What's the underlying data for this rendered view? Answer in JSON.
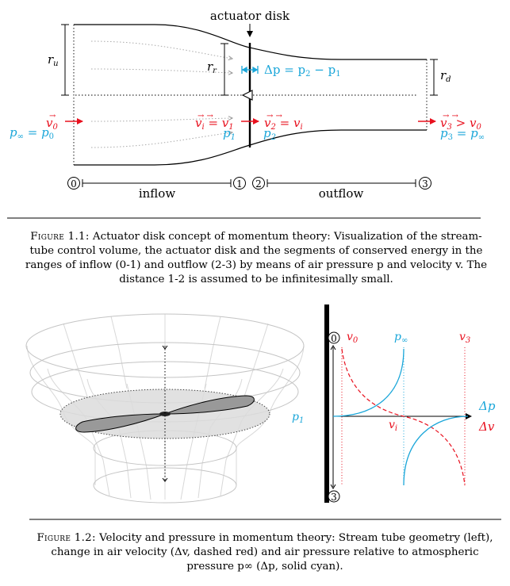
{
  "figure1": {
    "title": "actuator disk",
    "labels": {
      "ru": "r",
      "ru_sub": "u",
      "rr": "r",
      "rr_sub": "r",
      "rd": "r",
      "rd_sub": "d",
      "dp": "Δp = p",
      "dp_tail": " − p",
      "v0": "v",
      "v0_sub": "0",
      "pinf_p0": "p",
      "vi_v1": "v",
      "p1": "p",
      "p1_sub": "1",
      "v2_vi": "v",
      "p2": "p",
      "p2_sub": "2",
      "v3_v0": "v",
      "p3_pinf": "p"
    },
    "stations": [
      "0",
      "1",
      "2",
      "3"
    ],
    "segments": [
      "inflow",
      "outflow"
    ],
    "colors": {
      "velocity": "#e8101e",
      "pressure": "#1aa6d9"
    }
  },
  "caption1": {
    "label": "Figure 1.1:",
    "text": "Actuator disk concept of momentum theory: Visualization of the stream-tube control volume, the actuator disk and the segments of conserved energy in the ranges of inflow (0-1) and outflow (2-3) by means of air pressure p and velocity v. The distance 1-2 is assumed to be infinitesimally small."
  },
  "figure2": {
    "plot_labels": {
      "v0": "v",
      "v0_sub": "0",
      "pinf": "p",
      "pinf_sub": "∞",
      "v3": "v",
      "v3_sub": "3",
      "p1": "p",
      "p1_sub": "1",
      "vi": "v",
      "vi_sub": "i",
      "dp": "Δp",
      "dv": "Δv",
      "st0": "0",
      "st3": "3"
    }
  },
  "caption2": {
    "label": "Figure 1.2:",
    "text": "Velocity and pressure in momentum theory: Stream tube geometry (left), change in air velocity (Δv, dashed red) and air pressure relative to atmospheric pressure p∞ (Δp, solid cyan)."
  }
}
